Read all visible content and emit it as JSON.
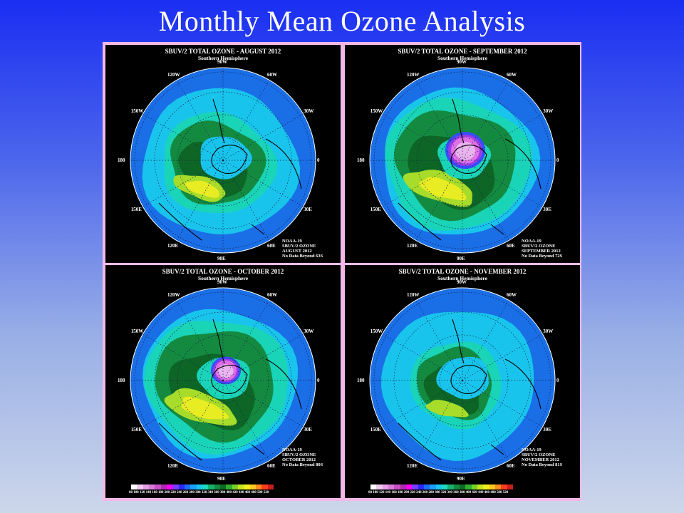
{
  "title": "Monthly Mean Ozone Analysis",
  "panels": [
    {
      "title": "SBUV/2 TOTAL OZONE - AUGUST 2012",
      "subtitle": "Southern Hemisphere",
      "info": [
        "NOAA-19",
        "SBUV/2 OZONE",
        "AUGUST 2012",
        "No Data Beyond 63S"
      ],
      "has_colorbar": false,
      "hole": 0,
      "ring_strength": 0.75
    },
    {
      "title": "SBUV/2 TOTAL OZONE - SEPTEMBER 2012",
      "subtitle": "Southern Hemisphere",
      "info": [
        "NOAA-19",
        "SBUV/2 OZONE",
        "SEPTEMBER 2012",
        "No Data Beyond 72S"
      ],
      "has_colorbar": false,
      "hole": 2,
      "ring_strength": 1.0
    },
    {
      "title": "SBUV/2 TOTAL OZONE - OCTOBER 2012",
      "subtitle": "Southern Hemisphere",
      "info": [
        "NOAA-19",
        "SBUV/2 OZONE",
        "OCTOBER 2012",
        "No Data Beyond 80S"
      ],
      "has_colorbar": true,
      "hole": 1,
      "ring_strength": 1.0
    },
    {
      "title": "SBUV/2 TOTAL OZONE - NOVEMBER 2012",
      "subtitle": "Southern Hemisphere",
      "info": [
        "NOAA-19",
        "SBUV/2 OZONE",
        "NOVEMBER 2012",
        "No Data Beyond 81S"
      ],
      "has_colorbar": true,
      "hole": 0,
      "ring_strength": 0.6
    }
  ],
  "longitude_labels": [
    "90W",
    "60W",
    "30W",
    "0",
    "30E",
    "60E",
    "90E",
    "120E",
    "150E",
    "180",
    "150W",
    "120W"
  ],
  "colorbar": {
    "ticks": [
      "80",
      "100",
      "120",
      "140",
      "160",
      "180",
      "200",
      "220",
      "240",
      "260",
      "280",
      "300",
      "320",
      "340",
      "360",
      "380",
      "400",
      "420",
      "440",
      "460",
      "480",
      "500",
      "520"
    ],
    "colors": [
      "#ffffff",
      "#f0c8f0",
      "#e6a0e6",
      "#d87ad8",
      "#c850c8",
      "#b02ab0",
      "#ff00ff",
      "#7a3cff",
      "#2a2aff",
      "#1e6cff",
      "#1aa0ff",
      "#19c8f0",
      "#1fd9c0",
      "#18b070",
      "#138a3c",
      "#0e6a24",
      "#2fb02f",
      "#7ad02a",
      "#c8e61e",
      "#f0f01e",
      "#ffc81e",
      "#ff8c1e",
      "#ff3c1e",
      "#c81e1e"
    ]
  },
  "ozone_colors": {
    "outer": "#1a6ee6",
    "cyan": "#19c4ec",
    "teal": "#1ad4b8",
    "green": "#148a40",
    "darkgreen": "#0d6626",
    "yellowgreen": "#a8dc2a",
    "yellow": "#e8ec22",
    "hole_blue": "#3a4cff",
    "hole_purple": "#9a3ce6",
    "hole_pink": "#e070e6",
    "hole_light": "#eab4ee"
  }
}
